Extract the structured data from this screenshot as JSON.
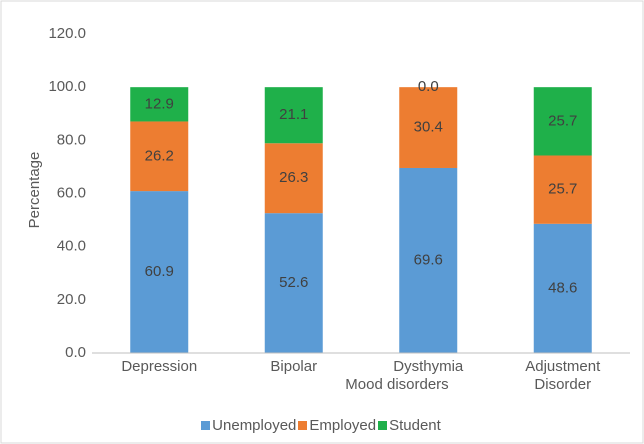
{
  "chart_data": {
    "type": "stacked_bar",
    "categories": [
      "Depression",
      "Bipolar",
      "Dysthymia",
      "Adjustment Disorder"
    ],
    "series": [
      {
        "name": "Unemployed",
        "color": "#5b9bd5",
        "values": [
          60.9,
          52.6,
          69.6,
          48.6
        ],
        "value_labels": [
          "60.9",
          "52.6",
          "69.6",
          "48.6"
        ]
      },
      {
        "name": "Employed",
        "color": "#ed7d31",
        "values": [
          26.2,
          26.3,
          30.4,
          25.7
        ],
        "value_labels": [
          "26.2",
          "26.3",
          "30.4",
          "25.7"
        ]
      },
      {
        "name": "Student",
        "color": "#1fb04a",
        "values": [
          12.9,
          21.1,
          0,
          25.7
        ],
        "value_labels": [
          "12.9",
          "21.1",
          "0.0",
          "25.7"
        ]
      }
    ],
    "xlabel": "Mood disorders",
    "ylabel": "Percentage",
    "ylim": [
      0,
      120
    ],
    "yticks": [
      {
        "value": 0,
        "label": "0.0"
      },
      {
        "value": 20,
        "label": "20.0"
      },
      {
        "value": 40,
        "label": "40.0"
      },
      {
        "value": 60,
        "label": "60.0"
      },
      {
        "value": 80,
        "label": "80.0"
      },
      {
        "value": 100,
        "label": "100.0"
      },
      {
        "value": 120,
        "label": "120.0"
      }
    ],
    "grid": false,
    "legend": "bottom"
  }
}
